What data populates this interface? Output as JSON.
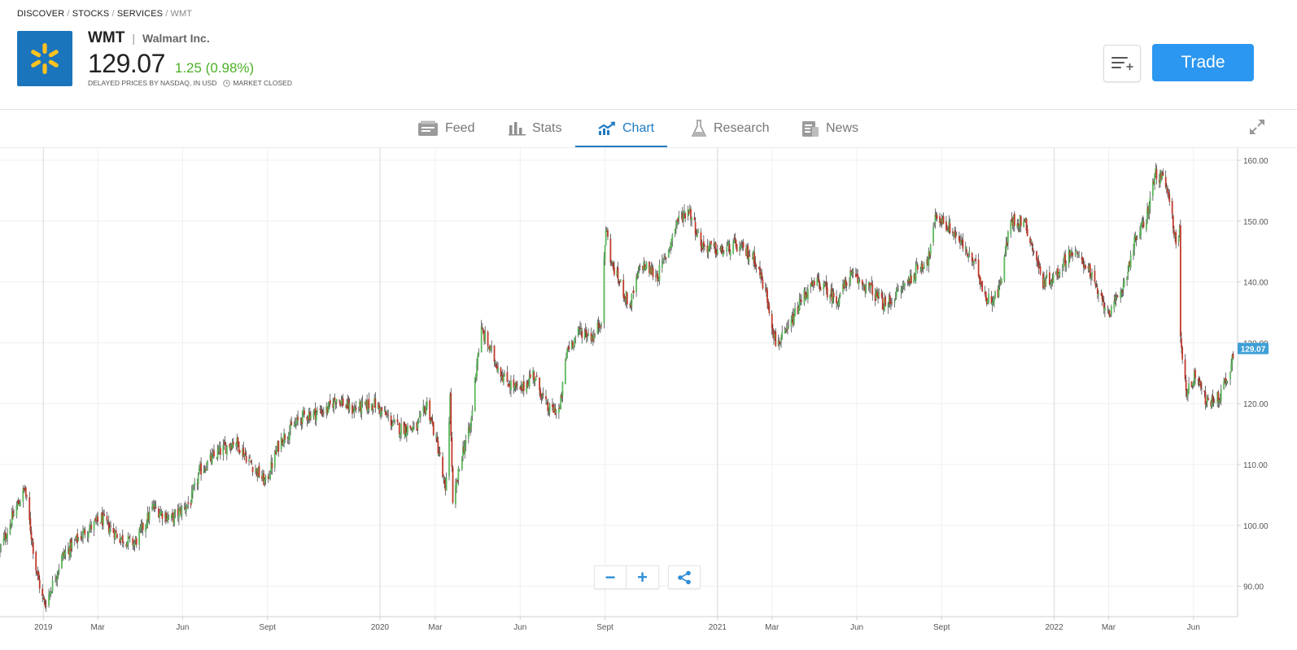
{
  "breadcrumb": {
    "items": [
      "DISCOVER",
      "STOCKS",
      "SERVICES"
    ],
    "current": "WMT",
    "separator": " / "
  },
  "instrument": {
    "ticker": "WMT",
    "divider": "|",
    "company": "Walmart Inc.",
    "price": "129.07",
    "change": "1.25 (0.98%)",
    "change_color": "#4caf26",
    "delay_note": "DELAYED PRICES BY NASDAQ, IN USD",
    "market_status": "MARKET CLOSED",
    "logo_icon": "walmart-spark-icon",
    "logo_color": "#1b75bc"
  },
  "actions": {
    "watchlist_icon": "add-to-list-icon",
    "trade_label": "Trade",
    "trade_color": "#2c97f0"
  },
  "tabs": [
    {
      "label": "Feed",
      "icon": "feed-icon"
    },
    {
      "label": "Stats",
      "icon": "bar-chart-icon"
    },
    {
      "label": "Chart",
      "icon": "trend-chart-icon",
      "active": true
    },
    {
      "label": "Research",
      "icon": "flask-icon"
    },
    {
      "label": "News",
      "icon": "newspaper-icon"
    }
  ],
  "chart_controls": {
    "zoom_out": "−",
    "zoom_in": "+",
    "share_icon": "share-icon",
    "expand_icon": "expand-icon"
  },
  "chart_data": {
    "type": "candlestick",
    "title": "",
    "ylim": [
      85,
      162
    ],
    "yticks": [
      "90.00",
      "100.00",
      "110.00",
      "120.00",
      "130.00",
      "140.00",
      "150.00",
      "160.00"
    ],
    "xlim": [
      "2018-11-15",
      "2022-07-18"
    ],
    "xticks": [
      {
        "label": "2019",
        "date": "2019-01-01",
        "major": true
      },
      {
        "label": "Mar",
        "date": "2019-03-01"
      },
      {
        "label": "Jun",
        "date": "2019-06-01"
      },
      {
        "label": "Sept",
        "date": "2019-09-01"
      },
      {
        "label": "2020",
        "date": "2020-01-01",
        "major": true
      },
      {
        "label": "Mar",
        "date": "2020-03-01"
      },
      {
        "label": "Jun",
        "date": "2020-06-01"
      },
      {
        "label": "Sept",
        "date": "2020-09-01"
      },
      {
        "label": "2021",
        "date": "2021-01-01",
        "major": true
      },
      {
        "label": "Mar",
        "date": "2021-03-01"
      },
      {
        "label": "Jun",
        "date": "2021-06-01"
      },
      {
        "label": "Sept",
        "date": "2021-09-01"
      },
      {
        "label": "2022",
        "date": "2022-01-01",
        "major": true
      },
      {
        "label": "Mar",
        "date": "2022-03-01"
      },
      {
        "label": "Jun",
        "date": "2022-06-01"
      }
    ],
    "last_price_label": "129.07",
    "last_price_color": "#3f9fd6",
    "up_color": "#5cb85c",
    "down_color": "#c0392b",
    "series": [
      {
        "name": "WMT",
        "close_path": [
          [
            "2018-11-15",
            96
          ],
          [
            "2018-12-03",
            103
          ],
          [
            "2018-12-12",
            106
          ],
          [
            "2018-12-24",
            93
          ],
          [
            "2018-12-31",
            88
          ],
          [
            "2019-01-03",
            87
          ],
          [
            "2019-01-22",
            95
          ],
          [
            "2019-02-15",
            99
          ],
          [
            "2019-03-05",
            101
          ],
          [
            "2019-03-25",
            98
          ],
          [
            "2019-04-10",
            97
          ],
          [
            "2019-04-30",
            103
          ],
          [
            "2019-05-20",
            101
          ],
          [
            "2019-06-10",
            104
          ],
          [
            "2019-06-20",
            109
          ],
          [
            "2019-07-10",
            112
          ],
          [
            "2019-07-28",
            114
          ],
          [
            "2019-08-15",
            110
          ],
          [
            "2019-08-30",
            107
          ],
          [
            "2019-09-15",
            114
          ],
          [
            "2019-10-10",
            118
          ],
          [
            "2019-11-05",
            119
          ],
          [
            "2019-11-15",
            121
          ],
          [
            "2019-12-01",
            119
          ],
          [
            "2019-12-26",
            120
          ],
          [
            "2020-01-20",
            116
          ],
          [
            "2020-02-10",
            116
          ],
          [
            "2020-02-21",
            120
          ],
          [
            "2020-03-05",
            112
          ],
          [
            "2020-03-12",
            105
          ],
          [
            "2020-03-17",
            121
          ],
          [
            "2020-03-20",
            103
          ],
          [
            "2020-03-30",
            112
          ],
          [
            "2020-04-08",
            116
          ],
          [
            "2020-04-15",
            127
          ],
          [
            "2020-04-20",
            132
          ],
          [
            "2020-05-05",
            127
          ],
          [
            "2020-05-15",
            124
          ],
          [
            "2020-06-01",
            122
          ],
          [
            "2020-06-15",
            125
          ],
          [
            "2020-07-01",
            119
          ],
          [
            "2020-07-14",
            119
          ],
          [
            "2020-07-22",
            129
          ],
          [
            "2020-08-05",
            132
          ],
          [
            "2020-08-20",
            131
          ],
          [
            "2020-08-28",
            134
          ],
          [
            "2020-09-02",
            149
          ],
          [
            "2020-09-08",
            143
          ],
          [
            "2020-09-28",
            136
          ],
          [
            "2020-10-10",
            143
          ],
          [
            "2020-10-28",
            141
          ],
          [
            "2020-11-08",
            145
          ],
          [
            "2020-11-18",
            150
          ],
          [
            "2020-12-01",
            152
          ],
          [
            "2020-12-15",
            146
          ],
          [
            "2021-01-05",
            145
          ],
          [
            "2021-01-20",
            146
          ],
          [
            "2021-02-10",
            144
          ],
          [
            "2021-02-23",
            138
          ],
          [
            "2021-03-05",
            130
          ],
          [
            "2021-03-15",
            131
          ],
          [
            "2021-04-05",
            138
          ],
          [
            "2021-04-20",
            140
          ],
          [
            "2021-05-10",
            137
          ],
          [
            "2021-05-25",
            141
          ],
          [
            "2021-06-15",
            139
          ],
          [
            "2021-07-02",
            136
          ],
          [
            "2021-07-20",
            139
          ],
          [
            "2021-08-05",
            142
          ],
          [
            "2021-08-18",
            144
          ],
          [
            "2021-08-26",
            151
          ],
          [
            "2021-09-15",
            148
          ],
          [
            "2021-10-10",
            142
          ],
          [
            "2021-10-20",
            137
          ],
          [
            "2021-11-01",
            138
          ],
          [
            "2021-11-15",
            150
          ],
          [
            "2021-11-30",
            150
          ],
          [
            "2021-12-20",
            140
          ],
          [
            "2022-01-03",
            141
          ],
          [
            "2022-01-18",
            145
          ],
          [
            "2022-02-05",
            143
          ],
          [
            "2022-02-20",
            137
          ],
          [
            "2022-03-05",
            135
          ],
          [
            "2022-03-18",
            140
          ],
          [
            "2022-03-30",
            147
          ],
          [
            "2022-04-10",
            150
          ],
          [
            "2022-04-21",
            158
          ],
          [
            "2022-05-02",
            156
          ],
          [
            "2022-05-13",
            147
          ],
          [
            "2022-05-17",
            148
          ],
          [
            "2022-05-18",
            131
          ],
          [
            "2022-05-24",
            122
          ],
          [
            "2022-06-05",
            125
          ],
          [
            "2022-06-15",
            120
          ],
          [
            "2022-06-28",
            121
          ],
          [
            "2022-07-10",
            125
          ],
          [
            "2022-07-15",
            129.07
          ]
        ]
      }
    ]
  }
}
